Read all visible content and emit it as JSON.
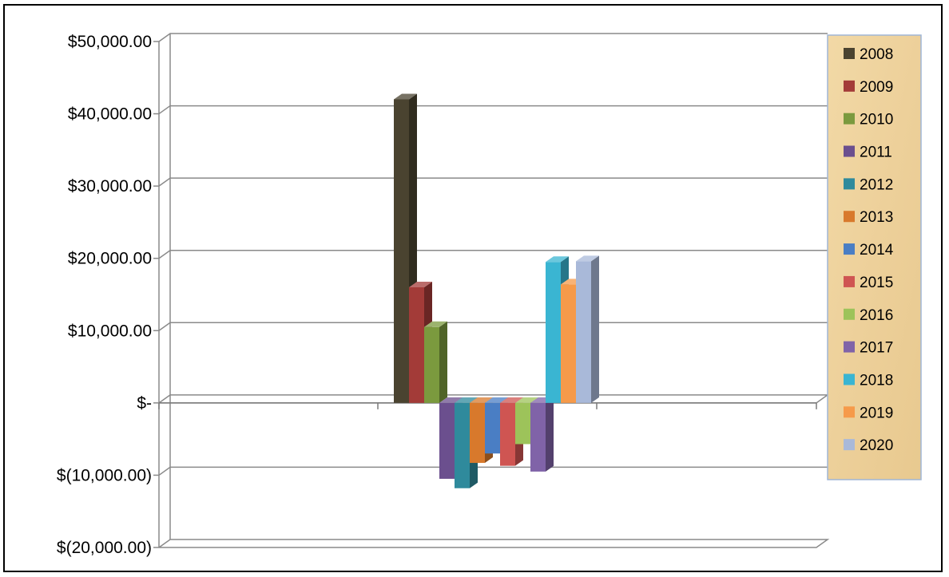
{
  "chart_data": {
    "type": "bar",
    "title": "",
    "xlabel": "",
    "ylabel": "",
    "ylim": [
      -20000,
      50000
    ],
    "y_ticks": [
      50000,
      40000,
      30000,
      20000,
      10000,
      0,
      -10000,
      -20000
    ],
    "y_tick_labels": [
      "$50,000.00",
      "$40,000.00",
      "$30,000.00",
      "$20,000.00",
      "$10,000.00",
      "$-",
      "$(10,000.00)",
      "$(20,000.00)"
    ],
    "grid": true,
    "style": "3d-clustered-column",
    "legend_position": "right",
    "series": [
      {
        "name": "2008",
        "value": 42000,
        "color": "#4a4330"
      },
      {
        "name": "2009",
        "value": 16000,
        "color": "#a33b38"
      },
      {
        "name": "2010",
        "value": 10500,
        "color": "#7b9a3e"
      },
      {
        "name": "2011",
        "value": -10500,
        "color": "#6b4f8e"
      },
      {
        "name": "2012",
        "value": -11800,
        "color": "#2f8a9c"
      },
      {
        "name": "2013",
        "value": -8300,
        "color": "#d8792c"
      },
      {
        "name": "2014",
        "value": -7000,
        "color": "#4a7ec4"
      },
      {
        "name": "2015",
        "value": -8700,
        "color": "#cf5552"
      },
      {
        "name": "2016",
        "value": -5700,
        "color": "#9dc35a"
      },
      {
        "name": "2017",
        "value": -9500,
        "color": "#8063a8"
      },
      {
        "name": "2018",
        "value": 19500,
        "color": "#3ab5d2"
      },
      {
        "name": "2019",
        "value": 16400,
        "color": "#f69a4a"
      },
      {
        "name": "2020",
        "value": 19600,
        "color": "#a9b9d9"
      }
    ]
  }
}
